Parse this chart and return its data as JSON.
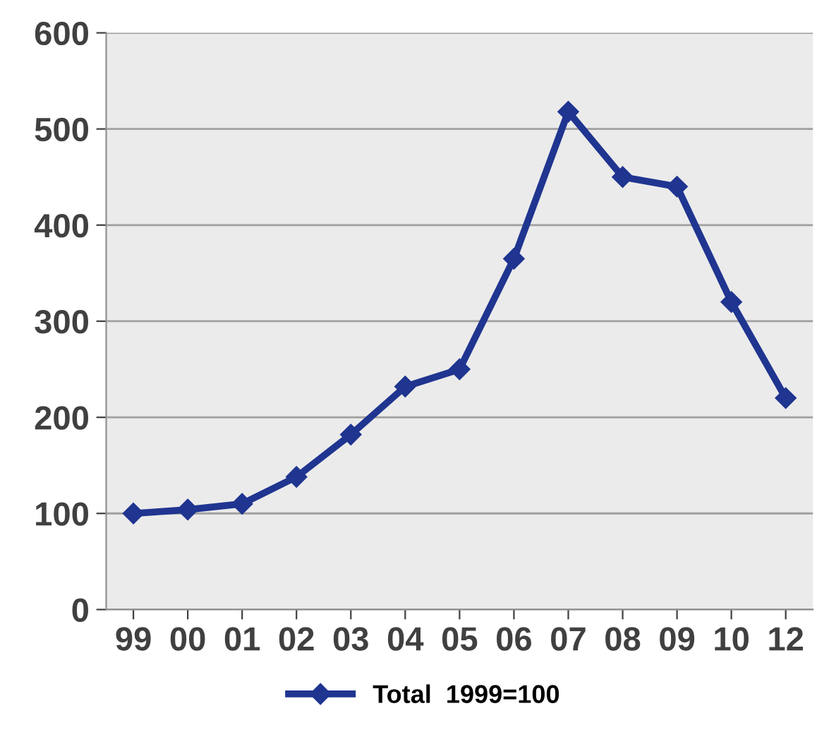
{
  "chart_data": {
    "type": "line",
    "categories": [
      "99",
      "00",
      "01",
      "02",
      "03",
      "04",
      "05",
      "06",
      "07",
      "08",
      "09",
      "10",
      "12"
    ],
    "series": [
      {
        "name": "Total  1999=100",
        "color": "#1f3590",
        "values": [
          100,
          104,
          110,
          138,
          182,
          232,
          250,
          365,
          518,
          450,
          440,
          320,
          220
        ]
      }
    ],
    "ylim": [
      0,
      600
    ],
    "yticks": [
      0,
      100,
      200,
      300,
      400,
      500,
      600
    ],
    "grid": "y",
    "legend": "bottom",
    "marker": "diamond",
    "line_style": "solid"
  }
}
